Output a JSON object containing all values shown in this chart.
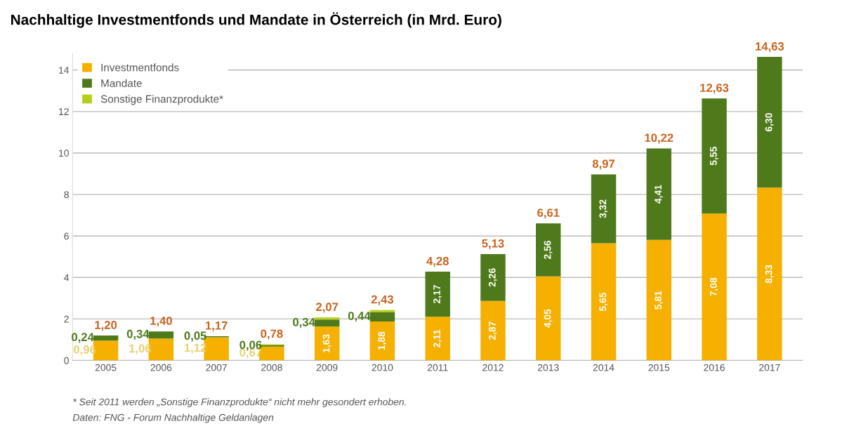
{
  "chart_data": {
    "type": "bar",
    "stacked": true,
    "title": "Nachhaltige Investmentfonds und Mandate in Österreich (in Mrd. Euro)",
    "categories": [
      "2005",
      "2006",
      "2007",
      "2008",
      "2009",
      "2010",
      "2011",
      "2012",
      "2013",
      "2014",
      "2015",
      "2016",
      "2017"
    ],
    "series": [
      {
        "name": "Investmentfonds",
        "color": "#f5b000",
        "values": [
          0.96,
          1.06,
          1.12,
          0.67,
          1.63,
          1.88,
          2.11,
          2.87,
          4.05,
          5.65,
          5.81,
          7.08,
          8.33
        ],
        "value_labels": [
          "0,96",
          "1,06",
          "1,12",
          "0,67",
          "1,63",
          "1,88",
          "2,11",
          "2,87",
          "4,05",
          "5,65",
          "5,81",
          "7,08",
          "8,33"
        ]
      },
      {
        "name": "Mandate",
        "color": "#4f7a1c",
        "values": [
          0.24,
          0.34,
          0.05,
          0.06,
          0.34,
          0.44,
          2.17,
          2.26,
          2.56,
          3.32,
          4.41,
          5.55,
          6.3
        ],
        "value_labels": [
          "0,24",
          "0,34",
          "0,05",
          "0,06",
          "0,34",
          "0,44",
          "2,17",
          "2,26",
          "2,56",
          "3,32",
          "4,41",
          "5,55",
          "6,30"
        ]
      },
      {
        "name": "Sonstige Finanzprodukte*",
        "color": "#b5cf1a",
        "values": [
          null,
          null,
          null,
          0.05,
          0.1,
          0.11,
          null,
          null,
          null,
          null,
          null,
          null,
          null
        ]
      }
    ],
    "totals": [
      "1,20",
      "1,40",
      "1,17",
      "0,78",
      "2,07",
      "2,43",
      "4,28",
      "5,13",
      "6,61",
      "8,97",
      "10,22",
      "12,63",
      "14,63"
    ],
    "ylim": [
      0,
      14.8
    ],
    "yticks": [
      0,
      2,
      4,
      6,
      8,
      10,
      12,
      14
    ],
    "grid": "y",
    "legend": "top left",
    "annotations": [
      "* Seit 2011 werden „Sonstige Finanzprodukte“ nicht mehr gesondert erhoben.",
      "Daten: FNG - Forum Nachhaltige Geldanlagen"
    ]
  }
}
